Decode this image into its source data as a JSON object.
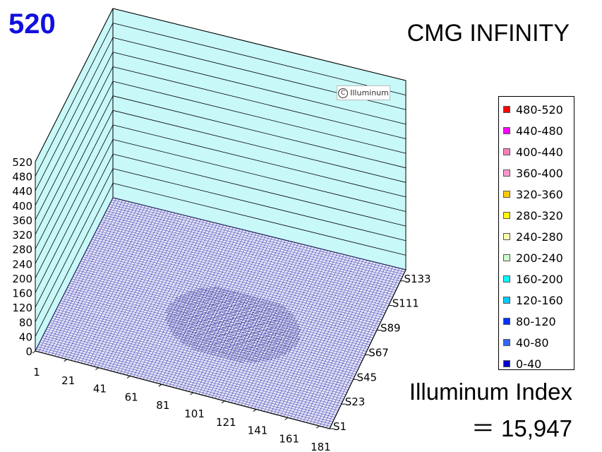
{
  "header": {
    "peak_value": "520",
    "title": "CMG INFINITY"
  },
  "index": {
    "label": "Illuminum Index",
    "value": "＝ 15,947"
  },
  "watermark": {
    "icon": "copyright-icon",
    "icon_glyph": "C",
    "text": "Illuminum"
  },
  "legend": {
    "items": [
      {
        "label": "480-520",
        "color": "#ff0000"
      },
      {
        "label": "440-480",
        "color": "#ff00ff"
      },
      {
        "label": "400-440",
        "color": "#ff80c0"
      },
      {
        "label": "360-400",
        "color": "#ff99cc"
      },
      {
        "label": "320-360",
        "color": "#ffcc00"
      },
      {
        "label": "280-320",
        "color": "#ffff00"
      },
      {
        "label": "240-280",
        "color": "#ffffb0"
      },
      {
        "label": "200-240",
        "color": "#ccffcc"
      },
      {
        "label": "160-200",
        "color": "#00ffff"
      },
      {
        "label": "120-160",
        "color": "#00ccff"
      },
      {
        "label": "80-120",
        "color": "#0033ff"
      },
      {
        "label": "40-80",
        "color": "#3366ff"
      },
      {
        "label": "0-40",
        "color": "#0000cc"
      }
    ]
  },
  "chart_data": {
    "type": "surface",
    "title": "CMG INFINITY",
    "z_ticks": [
      0,
      40,
      80,
      120,
      160,
      200,
      240,
      280,
      320,
      360,
      400,
      440,
      480,
      520
    ],
    "zlim": [
      0,
      520
    ],
    "x_ticks": [
      "1",
      "21",
      "41",
      "61",
      "81",
      "101",
      "121",
      "141",
      "161",
      "181"
    ],
    "y_ticks": [
      "S1",
      "S23",
      "S45",
      "S67",
      "S89",
      "S111",
      "S133"
    ],
    "wall_color": "#c8f8f8",
    "surface_color": "#3030b0",
    "max_value": 520,
    "surface_values_range": [
      0,
      40
    ]
  }
}
